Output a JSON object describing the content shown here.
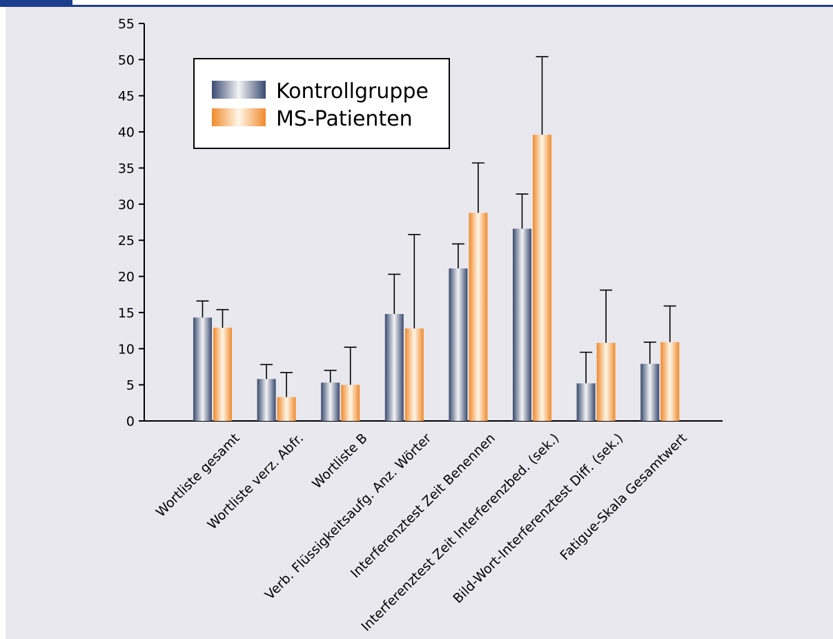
{
  "colors": {
    "page_background": "#e8e8ee",
    "header": "#1d3e8e",
    "axis": "#000000",
    "kontroll_dark": "#3a4a70",
    "kontroll_light": "#f4f4f6",
    "patient_dark": "#f08a2c",
    "patient_light": "#fff6e8"
  },
  "chart_data": {
    "type": "bar",
    "title": "",
    "xlabel": "",
    "ylabel": "",
    "ylim": [
      0,
      55
    ],
    "yticks": [
      0,
      5,
      10,
      15,
      20,
      25,
      30,
      35,
      40,
      45,
      50,
      55
    ],
    "grid": false,
    "legend_position": "top-left",
    "categories": [
      "Wortliste gesamt",
      "Wortliste verz. Abfr.",
      "Wortliste B",
      "Verb. Flüssigkeitsaufg. Anz. Wörter",
      "Interferenztest Zeit Benennen",
      "Interferenztest Zeit Interferenzbed. (sek.)",
      "Bild-Wort-Interferenztest Diff. (sek.)",
      "Fatigue-Skala Gesamtwert"
    ],
    "series": [
      {
        "name": "Kontrollgruppe",
        "values": [
          14.3,
          5.8,
          5.3,
          14.8,
          21.1,
          26.6,
          5.2,
          7.9
        ],
        "error_upper": [
          16.6,
          7.8,
          7.0,
          20.3,
          24.5,
          31.4,
          9.5,
          10.9
        ]
      },
      {
        "name": "MS-Patienten",
        "values": [
          12.9,
          3.3,
          5.0,
          12.8,
          28.8,
          39.6,
          10.8,
          10.9
        ],
        "error_upper": [
          15.4,
          6.7,
          10.2,
          25.8,
          35.7,
          50.4,
          18.1,
          15.9
        ]
      }
    ]
  }
}
